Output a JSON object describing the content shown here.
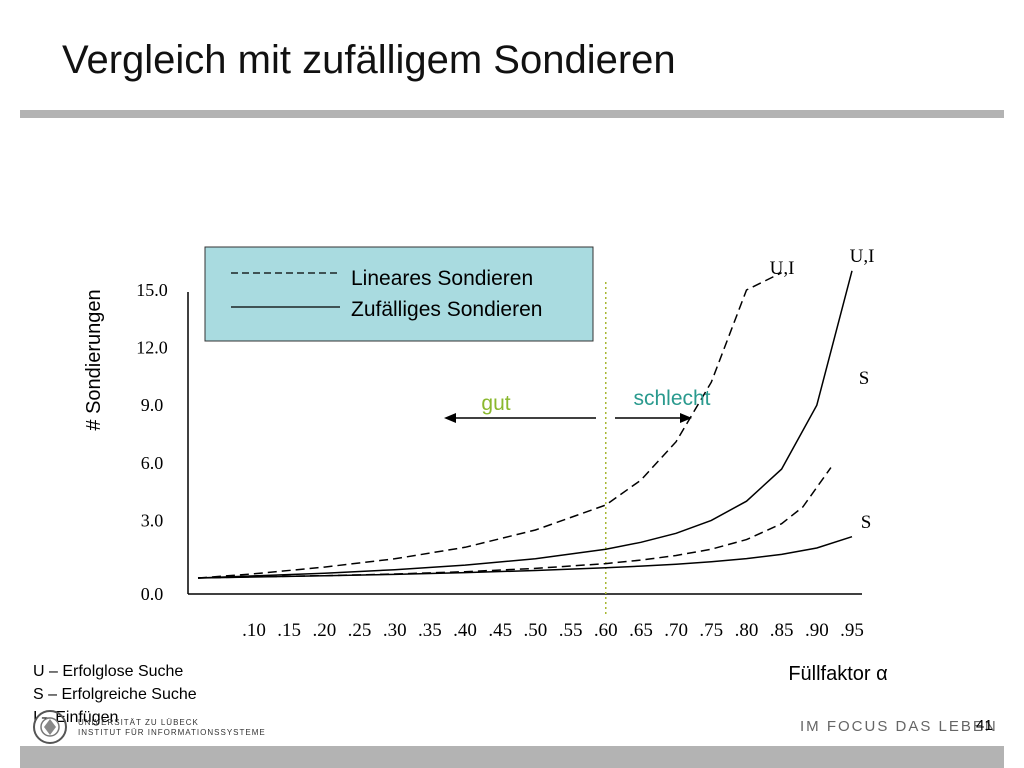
{
  "slide": {
    "title": "Vergleich mit zufälligem Sondieren",
    "page_number": "41",
    "footer_slogan": "IM FOCUS DAS LEBEN",
    "university": [
      "UNIVERSITÄT ZU LÜBECK",
      "INSTITUT FÜR INFORMATIONSSYSTEME"
    ],
    "notes": [
      "U – Erfolglose Suche",
      "S – Erfolgreiche Suche",
      "I – Einfügen"
    ]
  },
  "chart_data": {
    "type": "line",
    "xlabel": "Füllfaktor α",
    "ylabel": "# Sondierungen",
    "x": [
      0.0,
      0.1,
      0.15,
      0.2,
      0.25,
      0.3,
      0.35,
      0.4,
      0.45,
      0.5,
      0.55,
      0.6,
      0.65,
      0.7,
      0.75,
      0.8,
      0.85,
      0.9,
      0.95
    ],
    "x_ticks": [
      ".10",
      ".15",
      ".20",
      ".25",
      ".30",
      ".35",
      ".40",
      ".45",
      ".50",
      ".55",
      ".60",
      ".65",
      ".70",
      ".75",
      ".80",
      ".85",
      ".90",
      ".95"
    ],
    "y_ticks": [
      "0.0",
      "3.0",
      "6.0",
      "9.0",
      "12.0",
      "15.0"
    ],
    "ylim": [
      0,
      15
    ],
    "legend": [
      {
        "label": "Lineares Sondieren",
        "style": "dashed"
      },
      {
        "label": "Zufälliges Sondieren",
        "style": "solid"
      }
    ],
    "legend_background": "#a9dbe0",
    "series": [
      {
        "name": "Lineares Sondieren",
        "label": "U,I",
        "style": "dashed",
        "x": [
          0.0,
          0.1,
          0.2,
          0.3,
          0.4,
          0.5,
          0.6,
          0.65,
          0.7,
          0.75,
          0.8,
          0.85
        ],
        "y": [
          0.0,
          0.22,
          0.57,
          1.0,
          1.6,
          2.5,
          3.8,
          5.1,
          7.1,
          10.2,
          15.0,
          15.9
        ]
      },
      {
        "name": "Zufälliges Sondieren",
        "label": "U,I",
        "style": "solid",
        "x": [
          0.0,
          0.1,
          0.2,
          0.3,
          0.4,
          0.5,
          0.6,
          0.65,
          0.7,
          0.75,
          0.8,
          0.85,
          0.9,
          0.95
        ],
        "y": [
          0.0,
          0.11,
          0.25,
          0.43,
          0.67,
          1.0,
          1.5,
          1.86,
          2.33,
          3.0,
          4.0,
          5.67,
          9.0,
          16.0
        ]
      },
      {
        "name": "Lineares Sondieren",
        "label": "S",
        "style": "dashed",
        "x": [
          0.0,
          0.1,
          0.2,
          0.3,
          0.4,
          0.5,
          0.6,
          0.65,
          0.7,
          0.75,
          0.8,
          0.85,
          0.88,
          0.92
        ],
        "y": [
          0.0,
          0.06,
          0.12,
          0.21,
          0.33,
          0.5,
          0.75,
          0.93,
          1.17,
          1.5,
          2.0,
          2.83,
          3.7,
          5.75
        ]
      },
      {
        "name": "Zufälliges Sondieren",
        "label": "S",
        "style": "solid",
        "x": [
          0.0,
          0.1,
          0.2,
          0.3,
          0.4,
          0.5,
          0.6,
          0.65,
          0.7,
          0.75,
          0.8,
          0.85,
          0.9,
          0.95
        ],
        "y": [
          0.0,
          0.05,
          0.12,
          0.19,
          0.28,
          0.39,
          0.53,
          0.62,
          0.72,
          0.85,
          1.01,
          1.23,
          1.56,
          2.15
        ]
      }
    ],
    "threshold_x": 0.6,
    "threshold_color": "#a8b832",
    "annotations": [
      {
        "text": "gut",
        "direction": "left",
        "color": "#8ab82e"
      },
      {
        "text": "schlecht",
        "direction": "right",
        "color": "#2a9a8e"
      }
    ]
  }
}
